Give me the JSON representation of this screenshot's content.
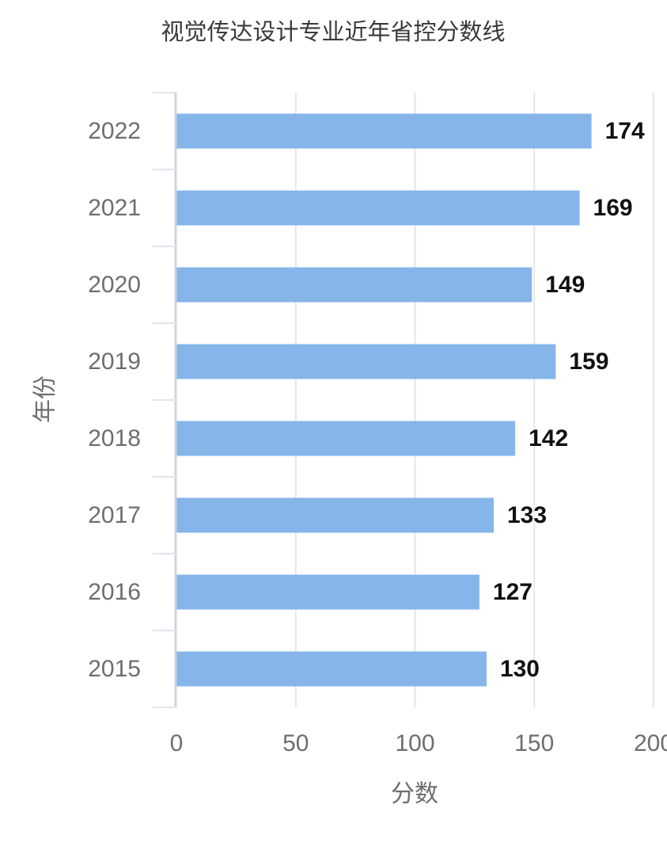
{
  "chart_data": {
    "type": "bar",
    "orientation": "horizontal",
    "title": "视觉传达设计专业近年省控分数线",
    "xlabel": "分数",
    "ylabel": "年份",
    "categories": [
      "2022",
      "2021",
      "2020",
      "2019",
      "2018",
      "2017",
      "2016",
      "2015"
    ],
    "values": [
      174,
      169,
      149,
      159,
      142,
      133,
      127,
      130
    ],
    "data_labels": [
      "174",
      "169",
      "149",
      "159",
      "142",
      "133",
      "127",
      "130"
    ],
    "xlim": [
      0,
      200
    ],
    "xticks": [
      "0",
      "50",
      "100",
      "150",
      "200"
    ],
    "grid": "vertical",
    "bar_color": "#86b5e9"
  }
}
